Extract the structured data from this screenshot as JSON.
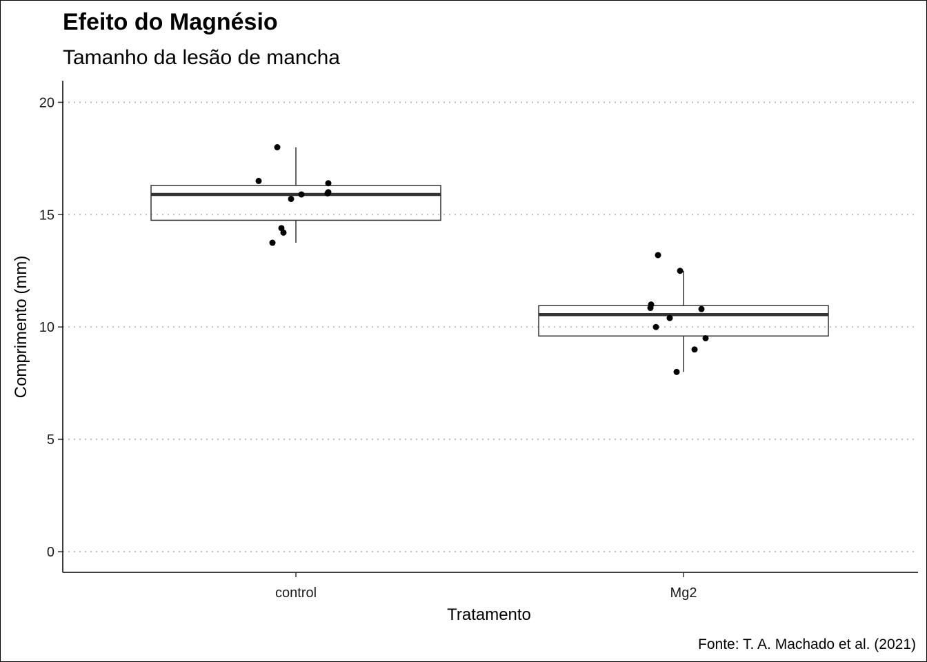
{
  "chart_data": {
    "type": "boxplot",
    "title": "Efeito do Magnésio",
    "subtitle": "Tamanho da lesão de mancha",
    "xlabel": "Tratamento",
    "ylabel": "Comprimento (mm)",
    "caption": "Fonte: T. A. Machado et al. (2021)",
    "categories": [
      "control",
      "Mg2"
    ],
    "ylim": [
      -1,
      21
    ],
    "yticks": [
      0,
      5,
      10,
      15,
      20
    ],
    "grid": "horizontal dotted",
    "boxes": [
      {
        "category": "control",
        "min": 13.75,
        "q1": 14.75,
        "median": 15.9,
        "q3": 16.3,
        "max": 18.0
      },
      {
        "category": "Mg2",
        "min": 8.0,
        "q1": 9.6,
        "median": 10.55,
        "q3": 10.95,
        "max": 12.5
      }
    ],
    "points": [
      {
        "category": "control",
        "values": [
          18.0,
          16.5,
          16.4,
          16.0,
          15.95,
          15.9,
          15.7,
          14.4,
          14.2,
          13.75
        ]
      },
      {
        "category": "Mg2",
        "values": [
          13.2,
          12.5,
          11.0,
          10.85,
          10.8,
          10.4,
          10.0,
          9.5,
          9.0,
          8.0
        ]
      }
    ],
    "colors": {
      "points": "#000000",
      "median": "#333333",
      "box": "#333333",
      "grid": "#bdbdbd"
    }
  }
}
